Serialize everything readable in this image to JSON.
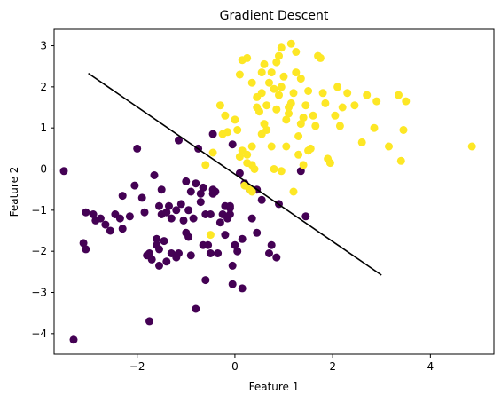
{
  "chart_data": {
    "type": "scatter",
    "title": "Gradient Descent",
    "xlabel": "Feature 1",
    "ylabel": "Feature 2",
    "xlim": [
      -3.7,
      5.3
    ],
    "ylim": [
      -4.5,
      3.4
    ],
    "xticks": [
      -2,
      0,
      2,
      4
    ],
    "yticks": [
      -4,
      -3,
      -2,
      -1,
      0,
      1,
      2,
      3
    ],
    "grid": false,
    "legend": "none",
    "colors": {
      "class0": "#440154",
      "class1": "#fde725",
      "line": "#000000"
    },
    "decision_boundary": {
      "x": [
        -3.0,
        3.0
      ],
      "y": [
        2.33,
        -2.58
      ]
    },
    "series": [
      {
        "class": 0,
        "points": [
          [
            -3.5,
            -0.05
          ],
          [
            -3.3,
            -4.15
          ],
          [
            -3.1,
            -1.8
          ],
          [
            -3.05,
            -1.95
          ],
          [
            -3.05,
            -1.05
          ],
          [
            -2.9,
            -1.1
          ],
          [
            -2.85,
            -1.25
          ],
          [
            -2.75,
            -1.2
          ],
          [
            -2.65,
            -1.35
          ],
          [
            -2.55,
            -1.5
          ],
          [
            -2.45,
            -1.1
          ],
          [
            -2.35,
            -1.2
          ],
          [
            -2.3,
            -1.45
          ],
          [
            -2.3,
            -0.65
          ],
          [
            -2.15,
            -1.15
          ],
          [
            -2.05,
            -0.4
          ],
          [
            -2.0,
            0.5
          ],
          [
            -1.9,
            -0.7
          ],
          [
            -1.8,
            -2.1
          ],
          [
            -1.75,
            -2.05
          ],
          [
            -1.7,
            -2.2
          ],
          [
            -1.65,
            -0.15
          ],
          [
            -1.6,
            -1.85
          ],
          [
            -1.55,
            -1.95
          ],
          [
            -1.55,
            -2.35
          ],
          [
            -1.55,
            -0.9
          ],
          [
            -1.5,
            -0.5
          ],
          [
            -1.5,
            -1.1
          ],
          [
            -1.45,
            -1.75
          ],
          [
            -1.4,
            -1.05
          ],
          [
            -1.4,
            -2.25
          ],
          [
            -1.35,
            -0.9
          ],
          [
            -1.3,
            -1.2
          ],
          [
            -1.3,
            -2.05
          ],
          [
            -1.2,
            -1.0
          ],
          [
            -1.2,
            -2.15
          ],
          [
            -1.15,
            -2.05
          ],
          [
            -1.15,
            0.7
          ],
          [
            -1.1,
            -0.85
          ],
          [
            -1.05,
            -1.25
          ],
          [
            -1.0,
            -0.3
          ],
          [
            -1.0,
            -1.55
          ],
          [
            -0.95,
            -1.0
          ],
          [
            -0.95,
            -1.65
          ],
          [
            -0.9,
            -0.55
          ],
          [
            -0.85,
            -1.2
          ],
          [
            -0.8,
            -3.4
          ],
          [
            -0.8,
            -0.35
          ],
          [
            -0.75,
            0.5
          ],
          [
            -0.7,
            -0.8
          ],
          [
            -0.65,
            -1.85
          ],
          [
            -0.65,
            -0.45
          ],
          [
            -0.6,
            -2.7
          ],
          [
            -0.6,
            -1.1
          ],
          [
            -0.55,
            -1.85
          ],
          [
            -0.5,
            -2.05
          ],
          [
            -0.5,
            -1.1
          ],
          [
            -0.45,
            -0.5
          ],
          [
            -0.45,
            0.85
          ],
          [
            -0.4,
            -0.55
          ],
          [
            -0.35,
            -2.05
          ],
          [
            -0.3,
            -1.3
          ],
          [
            -0.25,
            -1.1
          ],
          [
            -0.2,
            -0.9
          ],
          [
            -0.2,
            -1.6
          ],
          [
            -0.15,
            -1.2
          ],
          [
            -0.1,
            -1.1
          ],
          [
            -0.1,
            -0.9
          ],
          [
            -0.1,
            -0.95
          ],
          [
            -0.05,
            -2.8
          ],
          [
            -0.05,
            -2.35
          ],
          [
            -0.05,
            0.6
          ],
          [
            0.0,
            -1.85
          ],
          [
            0.05,
            -2.0
          ],
          [
            0.1,
            -0.1
          ],
          [
            0.15,
            -1.7
          ],
          [
            0.2,
            -0.35
          ],
          [
            0.3,
            -0.5
          ],
          [
            0.35,
            -1.2
          ],
          [
            0.45,
            -0.5
          ],
          [
            0.45,
            -1.55
          ],
          [
            0.55,
            -0.75
          ],
          [
            0.7,
            -2.05
          ],
          [
            0.75,
            -1.85
          ],
          [
            0.85,
            -2.15
          ],
          [
            0.9,
            -0.85
          ],
          [
            1.35,
            -0.05
          ],
          [
            1.45,
            -1.15
          ],
          [
            -1.75,
            -3.7
          ],
          [
            -1.6,
            -1.7
          ],
          [
            -0.9,
            -2.1
          ],
          [
            -1.85,
            -1.05
          ],
          [
            -0.45,
            -0.6
          ],
          [
            0.15,
            -2.9
          ],
          [
            -0.7,
            -0.6
          ]
        ]
      },
      {
        "class": 1,
        "points": [
          [
            -0.6,
            0.1
          ],
          [
            -0.5,
            -1.6
          ],
          [
            -0.45,
            0.4
          ],
          [
            -0.3,
            1.55
          ],
          [
            -0.25,
            0.85
          ],
          [
            -0.2,
            1.3
          ],
          [
            -0.15,
            0.9
          ],
          [
            0.0,
            1.2
          ],
          [
            0.05,
            0.95
          ],
          [
            0.1,
            0.3
          ],
          [
            0.15,
            0.45
          ],
          [
            0.2,
            -0.4
          ],
          [
            0.25,
            0.35
          ],
          [
            0.3,
            -0.5
          ],
          [
            0.35,
            -0.55
          ],
          [
            0.35,
            0.1
          ],
          [
            0.4,
            0.0
          ],
          [
            0.45,
            1.5
          ],
          [
            0.5,
            1.4
          ],
          [
            0.55,
            0.85
          ],
          [
            0.55,
            2.35
          ],
          [
            0.6,
            1.1
          ],
          [
            0.65,
            1.55
          ],
          [
            0.7,
            2.1
          ],
          [
            0.75,
            0.55
          ],
          [
            0.8,
            1.95
          ],
          [
            0.85,
            1.45
          ],
          [
            0.9,
            1.8
          ],
          [
            0.95,
            2.0
          ],
          [
            1.0,
            2.25
          ],
          [
            1.05,
            1.2
          ],
          [
            1.1,
            1.35
          ],
          [
            1.15,
            1.6
          ],
          [
            1.2,
            1.85
          ],
          [
            1.25,
            2.35
          ],
          [
            1.3,
            0.8
          ],
          [
            1.35,
            1.1
          ],
          [
            1.4,
            1.25
          ],
          [
            1.45,
            1.55
          ],
          [
            1.5,
            1.9
          ],
          [
            1.55,
            0.5
          ],
          [
            1.6,
            1.3
          ],
          [
            1.65,
            1.05
          ],
          [
            1.7,
            2.75
          ],
          [
            1.75,
            2.7
          ],
          [
            1.8,
            1.85
          ],
          [
            1.85,
            1.6
          ],
          [
            1.9,
            0.25
          ],
          [
            1.95,
            0.15
          ],
          [
            2.05,
            1.3
          ],
          [
            2.1,
            2.0
          ],
          [
            2.15,
            1.05
          ],
          [
            2.2,
            1.5
          ],
          [
            2.3,
            1.85
          ],
          [
            2.45,
            1.55
          ],
          [
            2.6,
            0.65
          ],
          [
            2.7,
            1.8
          ],
          [
            2.85,
            1.0
          ],
          [
            2.9,
            1.65
          ],
          [
            3.15,
            0.55
          ],
          [
            3.35,
            1.8
          ],
          [
            3.4,
            0.2
          ],
          [
            3.45,
            0.95
          ],
          [
            3.5,
            1.65
          ],
          [
            4.85,
            0.55
          ],
          [
            0.1,
            2.3
          ],
          [
            0.15,
            2.65
          ],
          [
            0.25,
            2.7
          ],
          [
            0.35,
            2.1
          ],
          [
            0.45,
            1.75
          ],
          [
            0.55,
            1.85
          ],
          [
            0.6,
            2.55
          ],
          [
            0.75,
            2.35
          ],
          [
            0.85,
            2.6
          ],
          [
            0.9,
            2.75
          ],
          [
            0.95,
            2.95
          ],
          [
            1.1,
            1.5
          ],
          [
            1.15,
            3.05
          ],
          [
            1.25,
            2.85
          ],
          [
            1.35,
            2.2
          ],
          [
            0.8,
            0.0
          ],
          [
            0.95,
            -0.05
          ],
          [
            1.3,
            0.35
          ],
          [
            1.5,
            0.45
          ],
          [
            1.2,
            -0.55
          ],
          [
            1.4,
            0.1
          ],
          [
            0.65,
            0.95
          ],
          [
            0.35,
            0.55
          ],
          [
            0.25,
            0.15
          ],
          [
            1.05,
            0.55
          ]
        ]
      }
    ]
  }
}
